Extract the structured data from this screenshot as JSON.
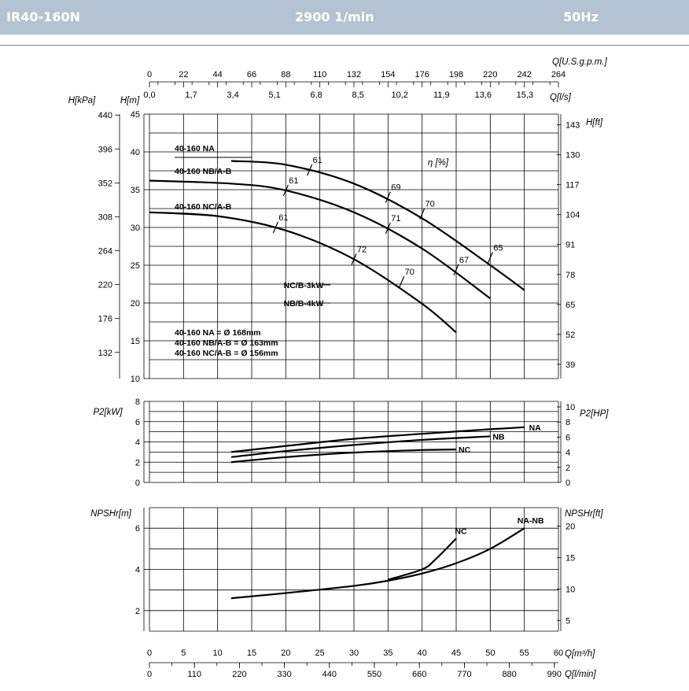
{
  "header": {
    "model": "IR40-160N",
    "speed": "2900 1/min",
    "frequency": "50Hz"
  },
  "units": {
    "q_usgpm": "Q[U.S.g.p.m.]",
    "q_ls": "Q[l/s]",
    "h_kpa": "H[kPa]",
    "h_m": "H[m]",
    "h_ft": "H[ft]",
    "eta": "η [%]",
    "p2_kw": "P2[kW]",
    "p2_hp": "P2[HP]",
    "npsh_m": "NPSHr[m]",
    "npsh_ft": "NPSHr[ft]",
    "q_m3h": "Q[m³/h]",
    "q_lmin": "Q[l/min]"
  },
  "chart_data": [
    {
      "type": "line",
      "title": "",
      "xlabel": "Q[m³/h]",
      "ylabel": "H[m]",
      "xlim": [
        0,
        60
      ],
      "ylim": [
        10,
        45
      ],
      "secondary_axes": {
        "top_usgpm": [
          "0",
          "22",
          "44",
          "66",
          "88",
          "110",
          "132",
          "154",
          "176",
          "198",
          "220",
          "242",
          "264"
        ],
        "top_ls": [
          "0,0",
          "1,7",
          "3,4",
          "5,1",
          "6,8",
          "8,5",
          "10,2",
          "11,9",
          "13,6",
          "15,3"
        ],
        "left_kpa": [
          "440",
          "396",
          "352",
          "308",
          "264",
          "220",
          "176",
          "132"
        ],
        "right_ft": [
          "143",
          "130",
          "117",
          "104",
          "91",
          "78",
          "65",
          "52",
          "39"
        ]
      },
      "series": [
        {
          "name": "40-160 NA",
          "x": [
            12,
            20,
            30,
            40,
            50,
            55
          ],
          "y": [
            38.8,
            38.3,
            35.8,
            31.2,
            25.0,
            21.7
          ]
        },
        {
          "name": "40-160 NB/A-B",
          "x": [
            0,
            12,
            20,
            30,
            40,
            50
          ],
          "y": [
            36.2,
            35.8,
            34.9,
            32.0,
            27.2,
            20.6
          ]
        },
        {
          "name": "40-160 NC/A-B",
          "x": [
            0,
            10,
            20,
            30,
            40,
            45
          ],
          "y": [
            32.0,
            31.5,
            29.6,
            25.8,
            19.9,
            16.1
          ]
        }
      ],
      "efficiency_marks": [
        {
          "x": 23.5,
          "y": 37.6,
          "label": "61"
        },
        {
          "x": 35.0,
          "y": 34.0,
          "label": "69"
        },
        {
          "x": 40.0,
          "y": 31.8,
          "label": "70"
        },
        {
          "x": 50.0,
          "y": 26.0,
          "label": "65"
        },
        {
          "x": 20.0,
          "y": 34.9,
          "label": "61"
        },
        {
          "x": 35.0,
          "y": 29.9,
          "label": "71"
        },
        {
          "x": 45.0,
          "y": 24.4,
          "label": "67"
        },
        {
          "x": 18.5,
          "y": 30.0,
          "label": "61"
        },
        {
          "x": 30.0,
          "y": 25.8,
          "label": "72"
        },
        {
          "x": 37.0,
          "y": 22.8,
          "label": "70"
        }
      ],
      "labels": {
        "na": "40-160 NA",
        "nb": "40-160 NB/A-B",
        "nc": "40-160 NC/A-B",
        "motor_nc": "NC/B-3kW",
        "motor_nb": "NB/B-4kW",
        "dia_na": "40-160 NA = Ø 168mm",
        "dia_nb": "40-160 NB/A-B = Ø 163mm",
        "dia_nc": "40-160 NC/A-B = Ø 156mm"
      },
      "grid": true
    },
    {
      "type": "line",
      "title": "",
      "xlabel": "Q[m³/h]",
      "ylabel": "P2[kW]",
      "xlim": [
        0,
        60
      ],
      "ylim": [
        0,
        8
      ],
      "right_hp_ticks": [
        "10",
        "8",
        "6",
        "4",
        "2",
        "0"
      ],
      "series": [
        {
          "name": "NA",
          "x": [
            12,
            20,
            30,
            40,
            50,
            55
          ],
          "y": [
            3.0,
            3.6,
            4.3,
            4.8,
            5.25,
            5.45
          ]
        },
        {
          "name": "NB",
          "x": [
            12,
            20,
            30,
            40,
            50
          ],
          "y": [
            2.5,
            3.1,
            3.7,
            4.2,
            4.55
          ]
        },
        {
          "name": "NC",
          "x": [
            12,
            20,
            30,
            40,
            45
          ],
          "y": [
            2.0,
            2.5,
            2.95,
            3.2,
            3.25
          ]
        }
      ],
      "grid": true
    },
    {
      "type": "line",
      "title": "",
      "xlabel": "Q[m³/h]",
      "ylabel": "NPSHr[m]",
      "xlim": [
        0,
        60
      ],
      "ylim": [
        1,
        7
      ],
      "right_ft_ticks": [
        "20",
        "15",
        "10",
        "5"
      ],
      "series": [
        {
          "name": "NA-NB",
          "x": [
            12,
            20,
            30,
            35,
            40,
            45,
            50,
            55
          ],
          "y": [
            2.6,
            2.85,
            3.2,
            3.45,
            3.8,
            4.3,
            5.0,
            6.0
          ]
        },
        {
          "name": "NC",
          "x": [
            35,
            40,
            42,
            45
          ],
          "y": [
            3.5,
            4.0,
            4.5,
            5.5
          ]
        }
      ],
      "grid": true
    }
  ],
  "bottom_axes": {
    "m3h": [
      "0",
      "5",
      "10",
      "15",
      "20",
      "25",
      "30",
      "35",
      "40",
      "45",
      "50",
      "55",
      "60"
    ],
    "lmin": [
      "0",
      "110",
      "220",
      "330",
      "440",
      "550",
      "660",
      "770",
      "880",
      "990"
    ]
  }
}
